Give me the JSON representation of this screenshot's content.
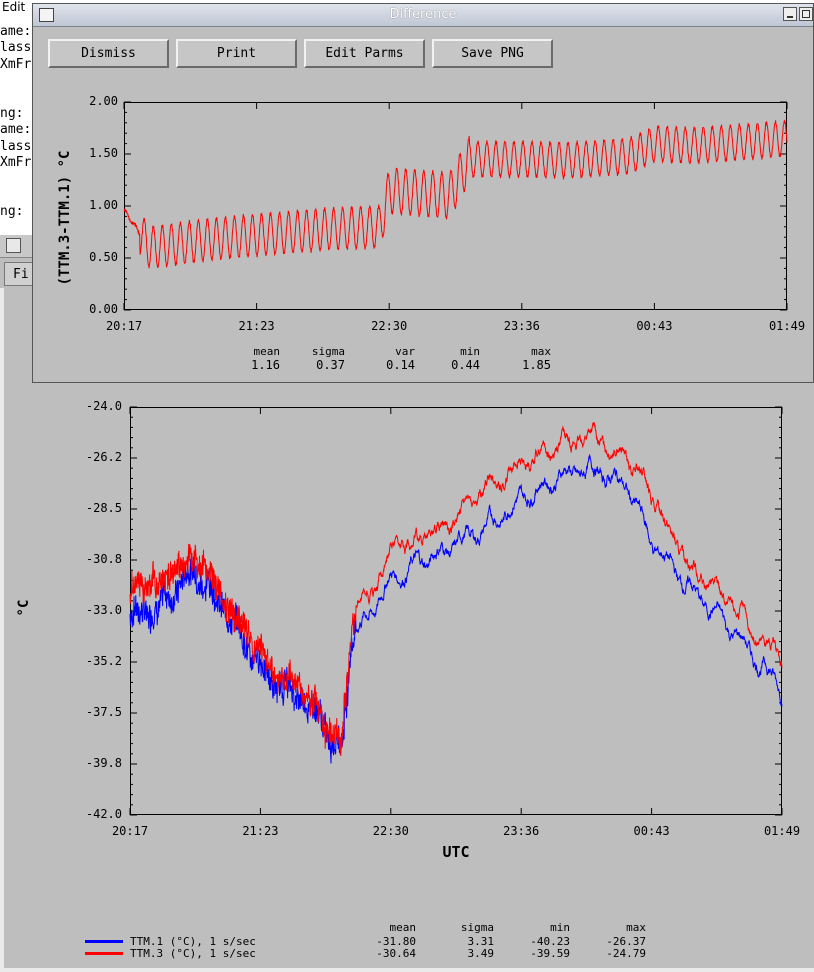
{
  "background_window": {
    "menu_edit": "Edit",
    "code_lines": [
      "ame:",
      "lass",
      "XmFra",
      "",
      "",
      "ng:",
      "ame:",
      "lass",
      "XmFra",
      "",
      "",
      "ng:"
    ],
    "tab_label": "Fi"
  },
  "difference_window": {
    "title": "Difference",
    "buttons": [
      "Dismiss",
      "Print",
      "Edit Parms",
      "Save PNG"
    ],
    "ylabel": "(TTM.3-TTM.1) °C",
    "yticks": [
      "2.00",
      "1.50",
      "1.00",
      "0.50",
      "0.00"
    ],
    "xticks": [
      "20:17",
      "21:23",
      "22:30",
      "23:36",
      "00:43",
      "01:49"
    ],
    "stats": {
      "headers": [
        "mean",
        "sigma",
        "var",
        "min",
        "max"
      ],
      "values": [
        "1.16",
        "0.37",
        "0.14",
        "0.44",
        "1.85"
      ]
    }
  },
  "main_plot": {
    "ylabel": "°C",
    "xlabel": "UTC",
    "yticks": [
      "-24.0",
      "-26.2",
      "-28.5",
      "-30.8",
      "-33.0",
      "-35.2",
      "-37.5",
      "-39.8",
      "-42.0"
    ],
    "xticks": [
      "20:17",
      "21:23",
      "22:30",
      "23:36",
      "00:43",
      "01:49"
    ],
    "stats_headers": [
      "mean",
      "sigma",
      "min",
      "max"
    ],
    "legend": [
      {
        "label": "TTM.1 (°C), 1 s/sec",
        "color": "#0000ff",
        "stats": [
          "-31.80",
          "3.31",
          "-40.23",
          "-26.37"
        ]
      },
      {
        "label": "TTM.3 (°C), 1 s/sec",
        "color": "#ff0000",
        "stats": [
          "-30.64",
          "3.49",
          "-39.59",
          "-24.79"
        ]
      }
    ]
  },
  "chart_data": [
    {
      "type": "line",
      "ylabel": "(TTM.3-TTM.1) °C",
      "ylim": [
        0,
        2
      ],
      "x": [
        "20:17",
        "20:30",
        "21:00",
        "21:23",
        "22:00",
        "22:25",
        "22:30",
        "23:00",
        "23:10",
        "23:36",
        "00:00",
        "00:30",
        "00:43",
        "01:00",
        "01:30",
        "01:49"
      ],
      "series": [
        {
          "color": "#ff0000",
          "values": [
            0.96,
            0.6,
            0.68,
            0.72,
            0.78,
            0.8,
            1.15,
            1.1,
            1.45,
            1.45,
            1.44,
            1.48,
            1.6,
            1.58,
            1.62,
            1.65
          ]
        }
      ]
    },
    {
      "type": "line",
      "xlabel": "UTC",
      "ylabel": "°C",
      "ylim": [
        -42.0,
        -24.0
      ],
      "x": [
        "20:17",
        "20:35",
        "20:50",
        "21:10",
        "21:23",
        "21:45",
        "22:05",
        "22:10",
        "22:20",
        "22:30",
        "23:00",
        "23:20",
        "23:36",
        "23:55",
        "00:15",
        "00:30",
        "00:43",
        "01:00",
        "01:20",
        "01:40",
        "01:49"
      ],
      "series": [
        {
          "name": "TTM.1 (°C), 1 s/sec",
          "color": "#0000ff",
          "values": [
            -33.2,
            -32.5,
            -31.0,
            -33.5,
            -35.5,
            -37.0,
            -39.0,
            -34.0,
            -33.0,
            -31.5,
            -30.2,
            -29.2,
            -28.0,
            -27.0,
            -26.8,
            -27.5,
            -30.0,
            -31.8,
            -33.5,
            -35.5,
            -36.3
          ]
        },
        {
          "name": "TTM.3 (°C), 1 s/sec",
          "color": "#ff0000",
          "values": [
            -32.0,
            -31.5,
            -30.5,
            -33.0,
            -35.0,
            -36.5,
            -38.7,
            -33.0,
            -32.0,
            -30.5,
            -29.0,
            -27.5,
            -26.5,
            -25.5,
            -25.3,
            -26.2,
            -28.0,
            -30.8,
            -32.5,
            -34.5,
            -35.0
          ]
        }
      ]
    }
  ]
}
